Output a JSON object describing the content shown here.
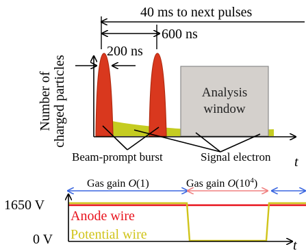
{
  "top": {
    "next_pulse_label": "40 ms to next pulses",
    "spacing_label": "600 ns",
    "width_label": "200 ns",
    "y_axis_label_line1": "Number of",
    "y_axis_label_line2": "charged particles",
    "analysis_window_line1": "Analysis",
    "analysis_window_line2": "window",
    "beam_prompt_label": "Beam-prompt burst",
    "signal_electron_label": "Signal electron",
    "t_axis_label": "t"
  },
  "bottom": {
    "gain_low_prefix": "Gas gain ",
    "gain_low_O": "O",
    "gain_low_suffix": "(1)",
    "gain_high_prefix": "Gas gain ",
    "gain_high_O": "O",
    "gain_high_base": "(10",
    "gain_high_exp": "4",
    "gain_high_close": ")",
    "voltage_high": "1650 V",
    "voltage_low": "0 V",
    "anode_label": "Anode wire",
    "potential_label": "Potential wire",
    "t_axis_label": "t"
  },
  "colors": {
    "burst_fill": "#d9381e",
    "burst_stroke": "#b02a10",
    "signal_fill": "#c5cc21",
    "window_fill": "#d4d0cc",
    "window_stroke": "#8a8a8a",
    "anode": "#e8121c",
    "potential": "#d0c41a",
    "gain_low_arrow": "#3a66e0",
    "gain_high_arrow": "#f08080"
  }
}
